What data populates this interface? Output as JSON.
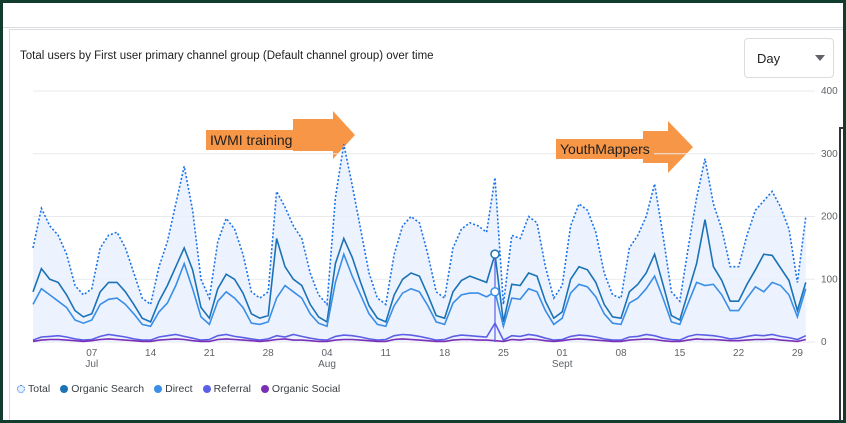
{
  "header": {
    "title": "Total users by First user primary channel group (Default channel group) over time",
    "dropdown": "Day"
  },
  "annotations": [
    "IWMI training",
    "YouthMappers"
  ],
  "chart_data": {
    "type": "line",
    "categories": [
      null,
      null,
      null,
      null,
      null,
      null,
      null,
      "07",
      null,
      null,
      null,
      null,
      null,
      null,
      "14",
      null,
      null,
      null,
      null,
      null,
      null,
      "21",
      null,
      null,
      null,
      null,
      null,
      null,
      "28",
      null,
      null,
      null,
      null,
      null,
      null,
      "04",
      null,
      null,
      null,
      null,
      null,
      null,
      "11",
      null,
      null,
      null,
      null,
      null,
      null,
      "18",
      null,
      null,
      null,
      null,
      null,
      null,
      "25",
      null,
      null,
      null,
      null,
      null,
      null,
      "01",
      null,
      null,
      null,
      null,
      null,
      null,
      "08",
      null,
      null,
      null,
      null,
      null,
      null,
      "15",
      null,
      null,
      null,
      null,
      null,
      null,
      "22",
      null,
      null,
      null,
      null,
      null,
      null,
      "29",
      null
    ],
    "category_months": [
      null,
      null,
      null,
      null,
      null,
      null,
      null,
      "Jul",
      null,
      null,
      null,
      null,
      null,
      null,
      null,
      null,
      null,
      null,
      null,
      null,
      null,
      null,
      null,
      null,
      null,
      null,
      null,
      null,
      null,
      null,
      null,
      null,
      null,
      null,
      null,
      "Aug",
      null,
      null,
      null,
      null,
      null,
      null,
      null,
      null,
      null,
      null,
      null,
      null,
      null,
      null,
      null,
      null,
      null,
      null,
      null,
      null,
      null,
      null,
      null,
      null,
      null,
      null,
      null,
      "Sept",
      null,
      null,
      null,
      null,
      null,
      null,
      null,
      null,
      null,
      null,
      null,
      null,
      null,
      null,
      null,
      null,
      null,
      null,
      null,
      null,
      null,
      null,
      null,
      null,
      null,
      null,
      null,
      null,
      null
    ],
    "ylim": [
      0,
      400
    ],
    "yticks": [
      0,
      100,
      200,
      300,
      400
    ],
    "grid": true,
    "series": [
      {
        "name": "Total",
        "color": "#1a73e8",
        "style": "dotted",
        "values": [
          150,
          213,
          185,
          170,
          140,
          90,
          75,
          85,
          150,
          170,
          175,
          150,
          110,
          70,
          60,
          120,
          160,
          220,
          280,
          210,
          100,
          70,
          160,
          197,
          180,
          140,
          80,
          70,
          80,
          240,
          215,
          185,
          165,
          110,
          75,
          60,
          230,
          315,
          250,
          180,
          110,
          70,
          60,
          140,
          185,
          200,
          190,
          140,
          80,
          70,
          150,
          180,
          190,
          185,
          175,
          262,
          60,
          170,
          165,
          200,
          190,
          120,
          70,
          90,
          185,
          220,
          210,
          175,
          110,
          75,
          70,
          150,
          170,
          200,
          252,
          170,
          80,
          65,
          150,
          230,
          292,
          220,
          180,
          120,
          120,
          170,
          210,
          225,
          240,
          215,
          180,
          95,
          200
        ]
      },
      {
        "name": "Organic Search",
        "color": "#1b72b5",
        "values": [
          80,
          117,
          100,
          95,
          75,
          50,
          40,
          45,
          80,
          95,
          95,
          80,
          60,
          38,
          32,
          65,
          90,
          120,
          150,
          115,
          55,
          38,
          85,
          108,
          100,
          78,
          45,
          38,
          42,
          165,
          120,
          100,
          90,
          60,
          40,
          32,
          125,
          165,
          135,
          95,
          58,
          38,
          32,
          75,
          100,
          110,
          105,
          75,
          42,
          38,
          80,
          98,
          105,
          100,
          95,
          140,
          32,
          92,
          90,
          110,
          105,
          65,
          38,
          48,
          100,
          120,
          115,
          95,
          60,
          40,
          38,
          80,
          92,
          110,
          140,
          92,
          42,
          35,
          80,
          125,
          195,
          120,
          98,
          65,
          65,
          92,
          115,
          140,
          138,
          118,
          98,
          50,
          95
        ]
      },
      {
        "name": "Direct",
        "color": "#3a8ee6",
        "values": [
          60,
          85,
          75,
          65,
          55,
          35,
          30,
          35,
          60,
          68,
          70,
          60,
          45,
          28,
          25,
          48,
          62,
          90,
          125,
          85,
          40,
          28,
          65,
          80,
          70,
          55,
          30,
          28,
          32,
          70,
          90,
          80,
          70,
          45,
          30,
          25,
          95,
          140,
          105,
          75,
          45,
          28,
          25,
          58,
          78,
          85,
          80,
          58,
          32,
          28,
          62,
          75,
          78,
          78,
          72,
          80,
          25,
          70,
          68,
          85,
          80,
          50,
          28,
          38,
          78,
          92,
          88,
          72,
          45,
          30,
          28,
          62,
          70,
          85,
          105,
          70,
          32,
          28,
          62,
          95,
          90,
          92,
          75,
          50,
          50,
          70,
          88,
          80,
          95,
          90,
          75,
          40,
          85
        ]
      },
      {
        "name": "Referral",
        "color": "#5c5fe6",
        "values": [
          3,
          8,
          9,
          10,
          8,
          5,
          3,
          4,
          9,
          12,
          10,
          8,
          5,
          3,
          3,
          8,
          10,
          12,
          9,
          6,
          3,
          4,
          10,
          12,
          9,
          7,
          5,
          3,
          5,
          10,
          8,
          12,
          9,
          6,
          4,
          3,
          9,
          11,
          10,
          8,
          5,
          3,
          4,
          10,
          12,
          11,
          9,
          6,
          3,
          4,
          9,
          11,
          10,
          9,
          8,
          30,
          3,
          10,
          9,
          12,
          10,
          6,
          3,
          4,
          9,
          11,
          10,
          8,
          5,
          3,
          3,
          8,
          9,
          12,
          10,
          6,
          4,
          3,
          9,
          12,
          11,
          10,
          8,
          5,
          6,
          9,
          11,
          10,
          12,
          9,
          7,
          4,
          10
        ]
      },
      {
        "name": "Organic Social",
        "color": "#7b2fb5",
        "values": [
          1,
          3,
          4,
          4,
          3,
          2,
          1,
          2,
          4,
          5,
          4,
          3,
          2,
          1,
          1,
          3,
          4,
          5,
          4,
          2,
          1,
          1,
          4,
          5,
          4,
          3,
          2,
          1,
          2,
          4,
          5,
          3,
          3,
          2,
          1,
          1,
          3,
          4,
          4,
          3,
          2,
          1,
          1,
          4,
          5,
          4,
          3,
          2,
          1,
          1,
          3,
          4,
          4,
          3,
          3,
          2,
          1,
          4,
          3,
          5,
          4,
          2,
          1,
          2,
          4,
          5,
          4,
          3,
          2,
          1,
          1,
          3,
          4,
          5,
          4,
          2,
          1,
          1,
          3,
          5,
          4,
          4,
          3,
          2,
          2,
          3,
          4,
          4,
          5,
          3,
          2,
          1,
          4
        ]
      }
    ],
    "hover_index": 55
  }
}
